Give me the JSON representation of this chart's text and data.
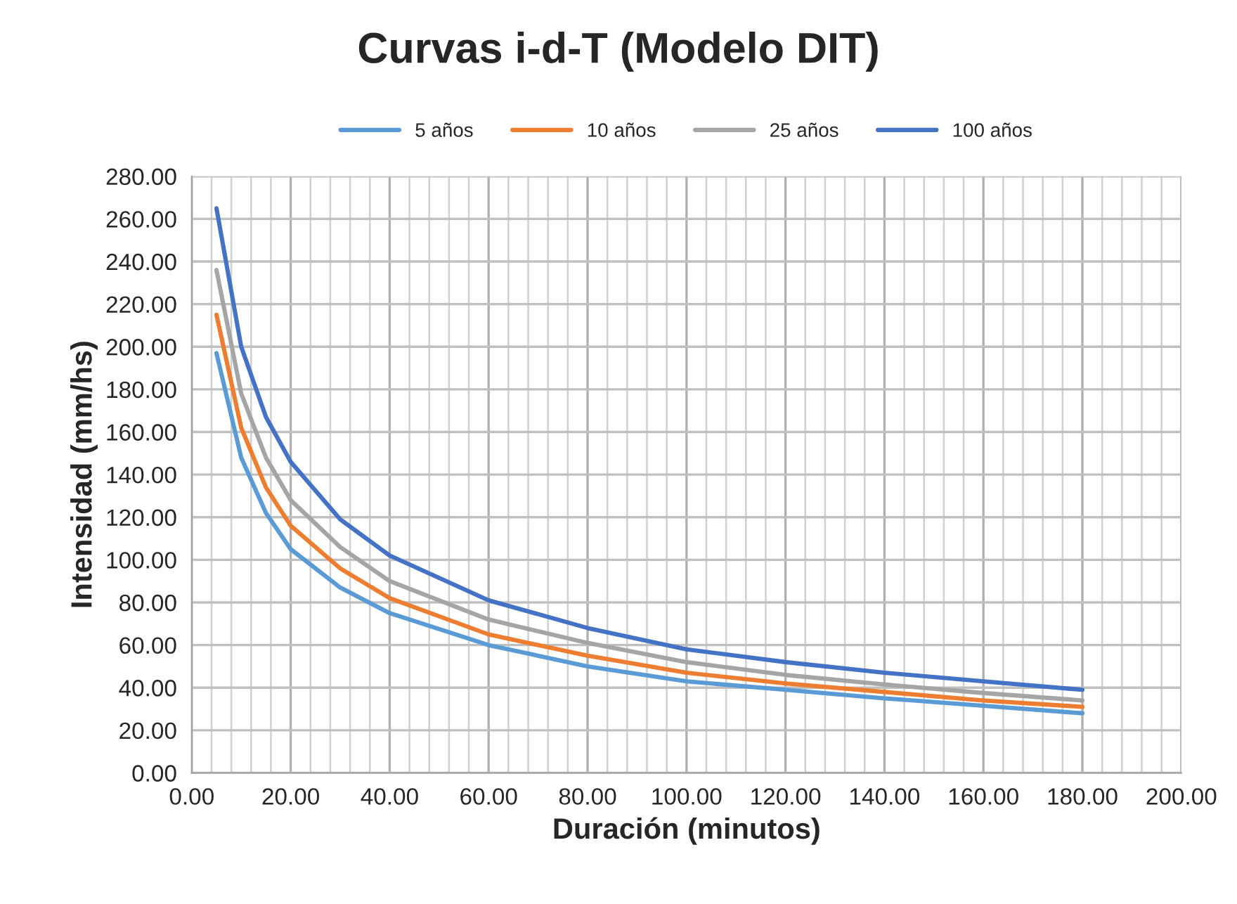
{
  "chart_data": {
    "type": "line",
    "title": "Curvas i-d-T (Modelo DIT)",
    "xlabel": "Duración (minutos)",
    "ylabel": "Intensidad (mm/hs)",
    "x": [
      5,
      10,
      15,
      20,
      30,
      40,
      60,
      80,
      100,
      120,
      140,
      160,
      180
    ],
    "series": [
      {
        "name": "5 años",
        "color": "#5b9bd5",
        "values": [
          197,
          148,
          122,
          105,
          87,
          75,
          60,
          50,
          43,
          39,
          35,
          31.5,
          28
        ]
      },
      {
        "name": "10 años",
        "color": "#ed7d31",
        "values": [
          215,
          162,
          134,
          116,
          96,
          82,
          65,
          55,
          47,
          42,
          38,
          34,
          31
        ]
      },
      {
        "name": "25 años",
        "color": "#a5a5a5",
        "values": [
          236,
          178,
          148,
          128,
          106,
          90,
          72,
          61,
          52,
          46,
          41.5,
          37.5,
          34
        ]
      },
      {
        "name": "100 años",
        "color": "#4472c4",
        "values": [
          265,
          200,
          167,
          146,
          119,
          102,
          81,
          68,
          58,
          52,
          47,
          43,
          39
        ]
      }
    ],
    "xlim": [
      0,
      200
    ],
    "ylim": [
      0,
      280
    ],
    "xticks": [
      {
        "value": 0,
        "label": "0.00"
      },
      {
        "value": 20,
        "label": "20.00"
      },
      {
        "value": 40,
        "label": "40.00"
      },
      {
        "value": 60,
        "label": "60.00"
      },
      {
        "value": 80,
        "label": "80.00"
      },
      {
        "value": 100,
        "label": "100.00"
      },
      {
        "value": 120,
        "label": "120.00"
      },
      {
        "value": 140,
        "label": "140.00"
      },
      {
        "value": 160,
        "label": "160.00"
      },
      {
        "value": 180,
        "label": "180.00"
      },
      {
        "value": 200,
        "label": "200.00"
      }
    ],
    "yticks": [
      {
        "value": 0,
        "label": "0.00"
      },
      {
        "value": 20,
        "label": "20.00"
      },
      {
        "value": 40,
        "label": "40.00"
      },
      {
        "value": 60,
        "label": "60.00"
      },
      {
        "value": 80,
        "label": "80.00"
      },
      {
        "value": 100,
        "label": "100.00"
      },
      {
        "value": 120,
        "label": "120.00"
      },
      {
        "value": 140,
        "label": "140.00"
      },
      {
        "value": 160,
        "label": "160.00"
      },
      {
        "value": 180,
        "label": "180.00"
      },
      {
        "value": 200,
        "label": "200.00"
      },
      {
        "value": 220,
        "label": "220.00"
      },
      {
        "value": 240,
        "label": "240.00"
      },
      {
        "value": 260,
        "label": "260.00"
      },
      {
        "value": 280,
        "label": "280.00"
      }
    ],
    "grid": true,
    "legend": "top",
    "marker": "none",
    "line_style": "solid"
  }
}
